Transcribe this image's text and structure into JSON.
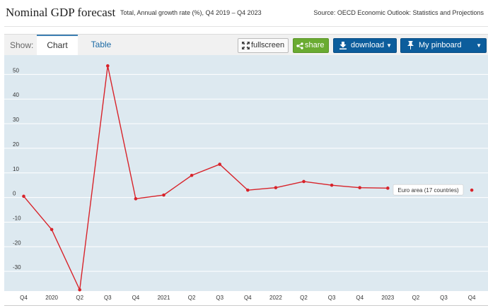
{
  "header": {
    "title": "Nominal GDP forecast",
    "subtitle": "Total, Annual growth rate (%), Q4 2019 – Q4 2023",
    "source": "Source: OECD Economic Outlook: Statistics and Projections"
  },
  "toolbar": {
    "show_label": "Show:",
    "tabs": [
      {
        "label": "Chart",
        "active": true
      },
      {
        "label": "Table",
        "active": false
      }
    ],
    "fullscreen_label": "fullscreen",
    "share_label": "share",
    "download_label": "download",
    "pinboard_label": "My pinboard",
    "icons": {
      "fullscreen": "expand-arrows-icon",
      "share": "share-icon",
      "download": "download-icon",
      "pinboard": "pin-icon"
    },
    "colors": {
      "share": "#6aab31",
      "download": "#0c5d9c",
      "pinboard": "#0c5d9c"
    }
  },
  "chart_data": {
    "type": "line",
    "title": "",
    "xlabel": "",
    "ylabel": "",
    "ylim": [
      -38,
      57
    ],
    "grid": true,
    "categories": [
      "Q4",
      "2020",
      "Q2",
      "Q3",
      "Q4",
      "2021",
      "Q2",
      "Q3",
      "Q4",
      "2022",
      "Q2",
      "Q3",
      "Q4",
      "2023",
      "Q2",
      "Q3",
      "Q4"
    ],
    "yticks": [
      -30,
      -20,
      -10,
      0,
      10,
      20,
      30,
      40,
      50
    ],
    "series": [
      {
        "name": "Euro area (17 countries)",
        "color": "#d8232a",
        "values": [
          0.5,
          -13,
          -37.5,
          53.5,
          -0.5,
          1,
          9,
          13.5,
          3,
          4,
          6.5,
          5,
          4,
          3.8,
          null,
          null,
          3
        ]
      }
    ],
    "tooltip_label": "Euro area (17 countries)",
    "plot_background": "#dde9f0"
  }
}
